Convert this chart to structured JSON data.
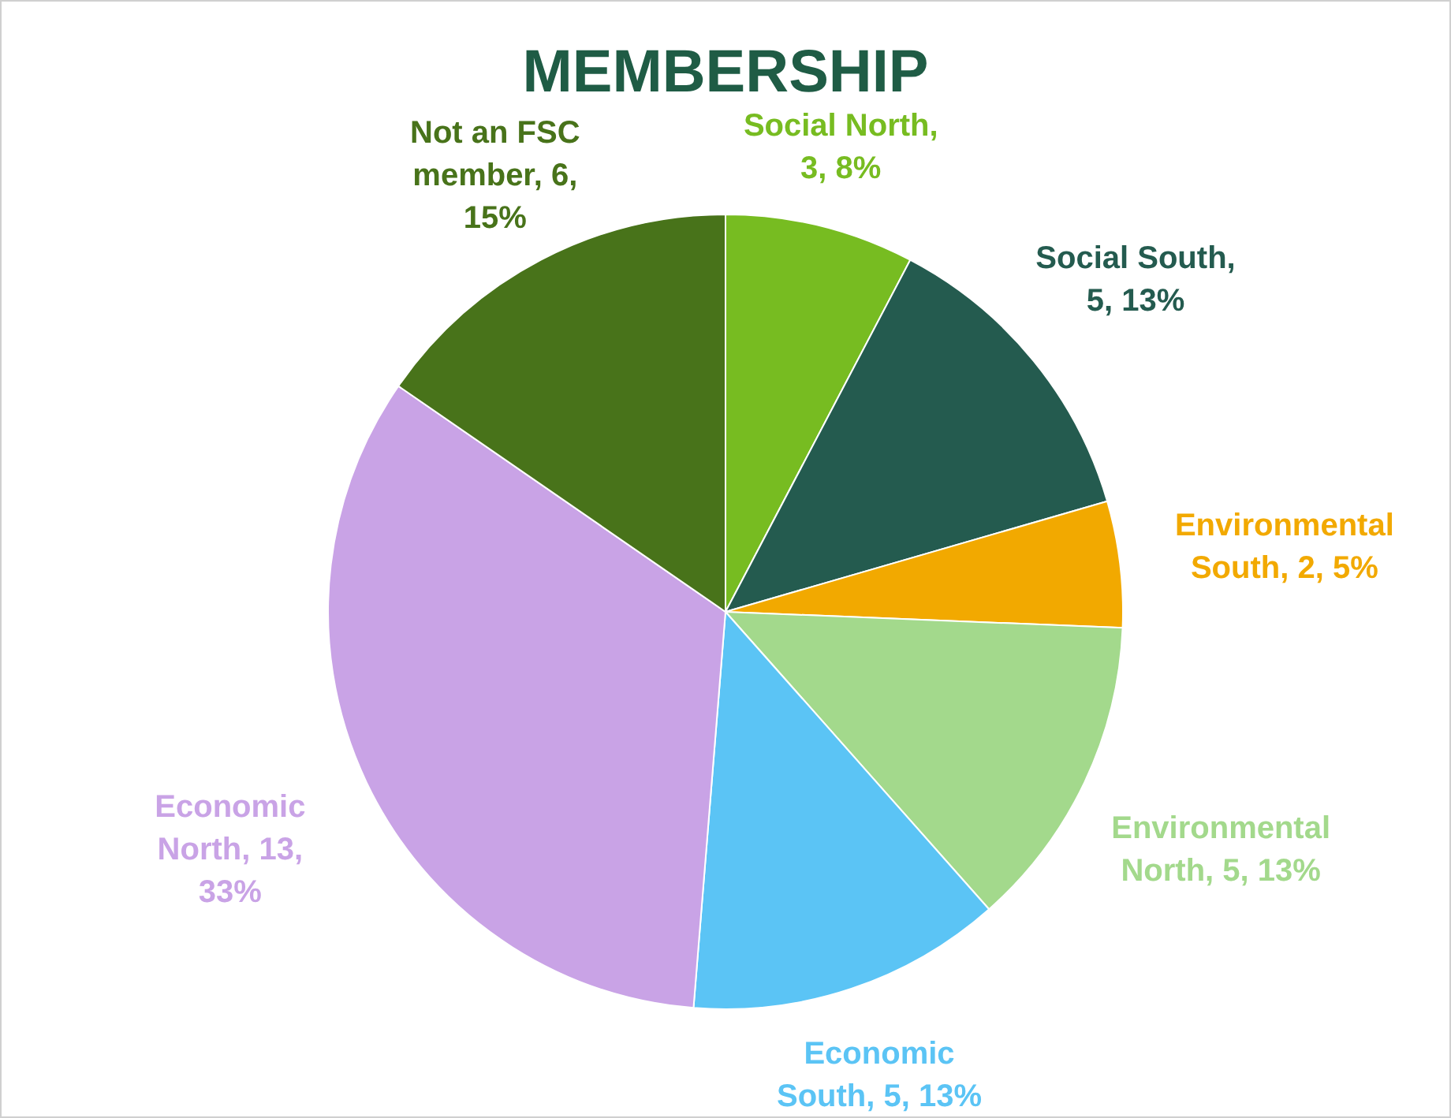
{
  "chart_data": {
    "type": "pie",
    "title": "MEMBERSHIP",
    "categories": [
      "Social North, 3, 8%",
      "Social South, 5, 13%",
      "Environmental South, 2, 5%",
      "Environmental North, 5, 13%",
      "Economic South, 5, 13%",
      "Economic North, 13, 33%",
      "Not an FSC member, 6, 15%"
    ],
    "values": [
      3,
      5,
      2,
      5,
      5,
      13,
      6
    ],
    "colors": [
      "#77bc21",
      "#245b4f",
      "#f2a900",
      "#a3d98c",
      "#5bc4f5",
      "#c9a3e6",
      "#48731a"
    ],
    "legend": false
  }
}
